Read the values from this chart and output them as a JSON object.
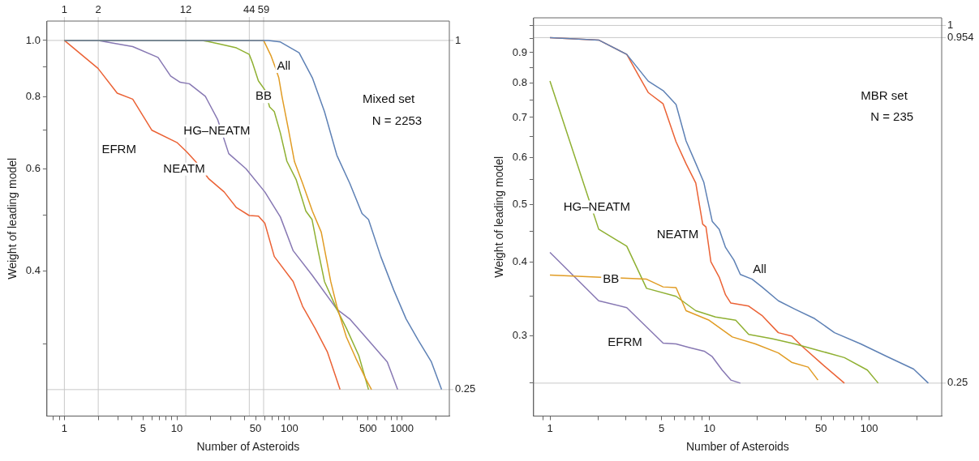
{
  "chart_data": [
    {
      "type": "line",
      "xlabel": "Number of Asteroids",
      "ylabel": "Weight of leading model",
      "log": "xy",
      "legend": false,
      "xlim": [
        0.72,
        2640
      ],
      "ylim": [
        0.225,
        1.08
      ],
      "xticks": [
        {
          "value": 0.8,
          "label": null
        },
        {
          "value": 0.9,
          "label": null
        },
        1,
        {
          "value": 2,
          "label": null
        },
        {
          "value": 3,
          "label": null
        },
        {
          "value": 4,
          "label": null
        },
        5,
        {
          "value": 6,
          "label": null
        },
        {
          "value": 7,
          "label": null
        },
        {
          "value": 8,
          "label": null
        },
        {
          "value": 9,
          "label": null
        },
        10,
        {
          "value": 20,
          "label": null
        },
        {
          "value": 30,
          "label": null
        },
        {
          "value": 40,
          "label": null
        },
        50,
        {
          "value": 60,
          "label": null
        },
        {
          "value": 70,
          "label": null
        },
        {
          "value": 80,
          "label": null
        },
        {
          "value": 90,
          "label": null
        },
        100,
        {
          "value": 200,
          "label": null
        },
        {
          "value": 300,
          "label": null
        },
        {
          "value": 400,
          "label": null
        },
        500,
        {
          "value": 600,
          "label": null
        },
        {
          "value": 700,
          "label": null
        },
        {
          "value": 800,
          "label": null
        },
        {
          "value": 900,
          "label": null
        },
        1000,
        {
          "value": 2000,
          "label": null
        }
      ],
      "yticks": [
        {
          "value": 0.3,
          "label": null
        },
        {
          "value": 0.4,
          "label": "0.4"
        },
        {
          "value": 0.5,
          "label": null
        },
        {
          "value": 0.6,
          "label": "0.6"
        },
        {
          "value": 0.7,
          "label": null
        },
        {
          "value": 0.8,
          "label": "0.8"
        },
        {
          "value": 0.9,
          "label": null
        },
        {
          "value": 1,
          "label": "1.0"
        }
      ],
      "ref_lines": [
        {
          "axis": "x",
          "value": 1,
          "label": "1"
        },
        {
          "axis": "x",
          "value": 2,
          "label": "2"
        },
        {
          "axis": "x",
          "value": 12,
          "label": "12"
        },
        {
          "axis": "x",
          "value": 44,
          "label": "44"
        },
        {
          "axis": "x",
          "value": 59,
          "label": "59"
        },
        {
          "axis": "y",
          "value": 1,
          "label": "1"
        },
        {
          "axis": "y",
          "value": 0.25,
          "label": "0.25"
        }
      ],
      "series": [
        {
          "color": "#5e81b5",
          "x": [
            1,
            65,
            83.2,
            122,
            160,
            205,
            264,
            344,
            442,
            505,
            649,
            847,
            1089,
            1400,
            1828,
            2253
          ],
          "values": [
            1,
            1,
            0.994,
            0.952,
            0.862,
            0.754,
            0.634,
            0.567,
            0.503,
            0.491,
            0.424,
            0.371,
            0.331,
            0.304,
            0.279,
            0.25
          ]
        },
        {
          "color": "#e19c24",
          "x": [
            1,
            59,
            68.8,
            75.3,
            80.5,
            86,
            98.4,
            111,
            131,
            160,
            192,
            233,
            264,
            321,
            390,
            472,
            537
          ],
          "values": [
            1,
            1,
            0.94,
            0.896,
            0.862,
            0.8,
            0.7,
            0.618,
            0.567,
            0.508,
            0.467,
            0.384,
            0.348,
            0.308,
            0.283,
            0.262,
            0.25
          ]
        },
        {
          "color": "#8fb032",
          "x": [
            1,
            16.8,
            23,
            33.8,
            44,
            46.8,
            53,
            60.5,
            66.7,
            73.4,
            83.2,
            95,
            115,
            140,
            159,
            180,
            205,
            264,
            321,
            414,
            505
          ],
          "values": [
            1,
            1,
            0.988,
            0.971,
            0.946,
            0.917,
            0.852,
            0.822,
            0.768,
            0.754,
            0.692,
            0.619,
            0.575,
            0.508,
            0.491,
            0.434,
            0.384,
            0.344,
            0.319,
            0.286,
            0.25
          ]
        },
        {
          "color": "#eb6235",
          "x": [
            1,
            1.99,
            2.95,
            4.05,
            6,
            10,
            12.2,
            14.7,
            19.1,
            26.3,
            33.8,
            43.9,
            53.1,
            60.5,
            73.4,
            108,
            131,
            169,
            218,
            282
          ],
          "values": [
            1,
            0.895,
            0.811,
            0.792,
            0.7,
            0.667,
            0.643,
            0.618,
            0.578,
            0.548,
            0.515,
            0.499,
            0.498,
            0.484,
            0.424,
            0.384,
            0.348,
            0.319,
            0.29,
            0.25
          ]
        },
        {
          "color": "#8778b3",
          "x": [
            1,
            2,
            4.05,
            6.8,
            8.8,
            10.7,
            12.9,
            17.9,
            23,
            28.9,
            41.1,
            60.5,
            83.2,
            108,
            159,
            264,
            343,
            504,
            741,
            916
          ],
          "values": [
            1,
            1,
            0.976,
            0.935,
            0.868,
            0.847,
            0.842,
            0.801,
            0.731,
            0.638,
            0.601,
            0.548,
            0.496,
            0.434,
            0.394,
            0.344,
            0.331,
            0.304,
            0.279,
            0.25
          ]
        }
      ],
      "annotations": [
        {
          "text": "All",
          "x": 89,
          "y": 0.902
        },
        {
          "text": "BB",
          "x": 59,
          "y": 0.8
        },
        {
          "text": "HG‒NEATM",
          "x": 22.7,
          "y": 0.698
        },
        "EFRM",
        "NEATM",
        "Mixed set",
        "N = 2253"
      ]
    },
    {
      "type": "line",
      "xlabel": "Number of Asteroids",
      "ylabel": "Weight of leading model",
      "log": "xy",
      "legend": false,
      "xlim": [
        0.79,
        285
      ],
      "ylim": [
        0.22,
        1.03
      ],
      "xticks": [
        {
          "value": 0.9,
          "label": null
        },
        1,
        {
          "value": 2,
          "label": null
        },
        {
          "value": 3,
          "label": null
        },
        {
          "value": 4,
          "label": null
        },
        5,
        {
          "value": 6,
          "label": null
        },
        {
          "value": 7,
          "label": null
        },
        {
          "value": 8,
          "label": null
        },
        {
          "value": 9,
          "label": null
        },
        10,
        {
          "value": 20,
          "label": null
        },
        {
          "value": 30,
          "label": null
        },
        {
          "value": 40,
          "label": null
        },
        50,
        {
          "value": 60,
          "label": null
        },
        {
          "value": 70,
          "label": null
        },
        {
          "value": 80,
          "label": null
        },
        {
          "value": 90,
          "label": null
        },
        100,
        {
          "value": 200,
          "label": null
        }
      ],
      "yticks": [
        {
          "value": 0.25,
          "label": null
        },
        0.3,
        {
          "value": 0.35,
          "label": null
        },
        0.4,
        {
          "value": 0.45,
          "label": null
        },
        0.5,
        {
          "value": 0.55,
          "label": null
        },
        0.6,
        {
          "value": 0.65,
          "label": null
        },
        0.7,
        {
          "value": 0.75,
          "label": null
        },
        0.8,
        {
          "value": 0.85,
          "label": null
        },
        0.9,
        {
          "value": 0.95,
          "label": null
        },
        {
          "value": 1,
          "label": null
        }
      ],
      "ref_lines": [
        {
          "axis": "y",
          "value": 1,
          "label": "1"
        },
        {
          "axis": "y",
          "value": 0.954,
          "label": "0.954"
        },
        {
          "axis": "y",
          "value": 0.25,
          "label": "0.25"
        }
      ],
      "series": [
        {
          "color": "#5e81b5",
          "x": [
            1,
            2.02,
            3.03,
            4.13,
            5.12,
            6.17,
            7.13,
            8.2,
            9.2,
            10.4,
            11.5,
            12,
            12.6,
            14.2,
            15.6,
            18.5,
            21.3,
            27,
            34.3,
            45.6,
            60.7,
            88.7,
            130,
            190,
            235
          ],
          "values": [
            0.954,
            0.945,
            0.894,
            0.806,
            0.777,
            0.736,
            0.639,
            0.586,
            0.545,
            0.468,
            0.454,
            0.439,
            0.423,
            0.403,
            0.381,
            0.374,
            0.363,
            0.344,
            0.333,
            0.321,
            0.304,
            0.291,
            0.277,
            0.264,
            0.25
          ]
        },
        {
          "color": "#e19c24",
          "x": [
            1,
            4.03,
            5.12,
            6.17,
            7.13,
            9.95,
            13.9,
            19.4,
            27,
            32.7,
            41.5,
            47.8
          ],
          "values": [
            0.38,
            0.374,
            0.363,
            0.362,
            0.331,
            0.319,
            0.299,
            0.291,
            0.281,
            0.271,
            0.266,
            0.253
          ]
        },
        {
          "color": "#8fb032",
          "x": [
            1,
            2.02,
            3.03,
            4.03,
            6.17,
            8.2,
            10.9,
            14.6,
            17.6,
            24.6,
            34.3,
            50.1,
            70,
            97.5,
            114
          ],
          "values": [
            0.806,
            0.454,
            0.425,
            0.361,
            0.35,
            0.331,
            0.323,
            0.319,
            0.302,
            0.297,
            0.291,
            0.283,
            0.276,
            0.263,
            0.25
          ]
        },
        {
          "color": "#eb6235",
          "x": [
            1,
            2.02,
            3.03,
            3.58,
            4.13,
            5.12,
            6.17,
            7.13,
            8.2,
            9.06,
            9.5,
            10.2,
            11.5,
            12.6,
            13.6,
            17.6,
            21.3,
            27,
            32.7,
            37.7,
            50.1,
            70
          ],
          "values": [
            0.954,
            0.945,
            0.894,
            0.825,
            0.771,
            0.738,
            0.637,
            0.585,
            0.543,
            0.463,
            0.458,
            0.4,
            0.377,
            0.352,
            0.341,
            0.337,
            0.325,
            0.304,
            0.3,
            0.289,
            0.27,
            0.25
          ]
        },
        {
          "color": "#8778b3",
          "x": [
            1,
            2.02,
            3.03,
            5.12,
            6.17,
            7.48,
            9.26,
            10.4,
            12,
            13.6,
            15.6
          ],
          "values": [
            0.415,
            0.344,
            0.335,
            0.292,
            0.291,
            0.287,
            0.283,
            0.277,
            0.263,
            0.253,
            0.25
          ]
        }
      ],
      "annotations": [
        "HG‒NEATM",
        "NEATM",
        {
          "text": "All",
          "x": 20.6,
          "y": 0.388
        },
        {
          "text": "BB",
          "x": 2.41,
          "y": 0.374
        },
        "EFRM",
        "MBR set",
        "N = 235"
      ]
    }
  ]
}
